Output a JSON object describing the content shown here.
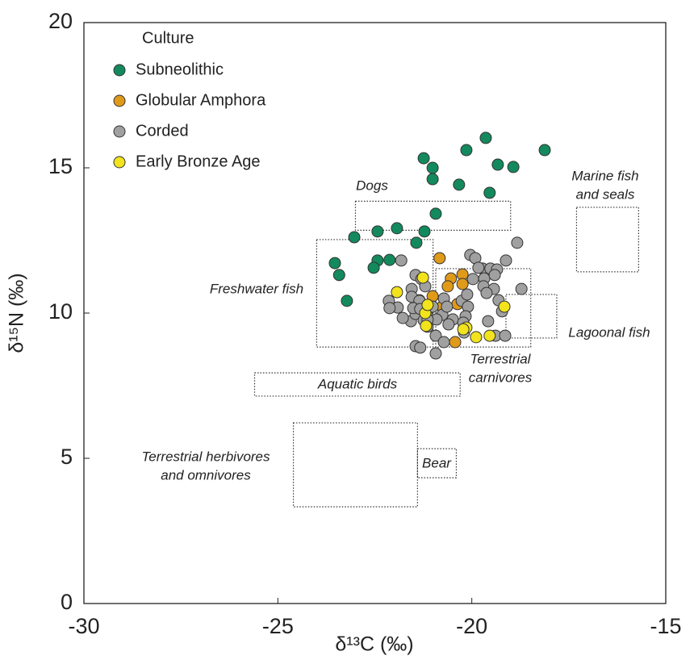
{
  "chart_data": {
    "type": "scatter",
    "xlabel": "δ¹³C (‰)",
    "ylabel": "δ¹⁵N (‰)",
    "xlim": [
      -30,
      -15
    ],
    "ylim": [
      0,
      20
    ],
    "xticks": [
      -30,
      -25,
      -20,
      -15
    ],
    "yticks": [
      0,
      5,
      10,
      15,
      20
    ],
    "legend_title": "Culture",
    "legend_position": "upper left",
    "series": [
      {
        "name": "Subneolithic",
        "color": "#138a5e",
        "x": [
          -21.24,
          -21.01,
          -21.01,
          -20.14,
          -19.64,
          -19.33,
          -18.93,
          -18.12,
          -20.33,
          -19.54,
          -20.93,
          -21.22,
          -21.93,
          -22.43,
          -23.03,
          -21.43,
          -23.53,
          -23.42,
          -22.43,
          -22.53,
          -22.12,
          -23.22
        ],
        "values": [
          15.33,
          15.0,
          14.61,
          15.61,
          16.03,
          15.11,
          15.03,
          15.61,
          14.42,
          14.14,
          13.42,
          12.81,
          12.92,
          12.81,
          12.61,
          12.42,
          11.72,
          11.31,
          11.81,
          11.56,
          11.83,
          10.42
        ]
      },
      {
        "name": "Globular Amphora",
        "color": "#e09a1a",
        "x": [
          -20.83,
          -20.54,
          -20.62,
          -20.24,
          -20.24,
          -21.01,
          -21.35,
          -21.2,
          -20.37,
          -20.43,
          -20.76
        ],
        "values": [
          11.89,
          11.19,
          10.92,
          11.33,
          11.0,
          10.58,
          10.44,
          10.17,
          10.31,
          9.0,
          10.22
        ]
      },
      {
        "name": "Corded",
        "color": "#a0a0a0",
        "x": [
          -21.82,
          -21.45,
          -21.3,
          -21.55,
          -21.2,
          -21.55,
          -21.35,
          -22.14,
          -21.91,
          -22.12,
          -21.57,
          -21.45,
          -21.16,
          -21.24,
          -21.14,
          -21.78,
          -21.51,
          -21.33,
          -21.01,
          -20.72,
          -20.76,
          -20.91,
          -20.49,
          -20.26,
          -20.12,
          -20.64,
          -20.6,
          -20.1,
          -20.16,
          -19.97,
          -20.04,
          -19.91,
          -19.72,
          -19.68,
          -19.83,
          -19.52,
          -19.35,
          -19.41,
          -19.7,
          -19.43,
          -19.62,
          -19.12,
          -18.83,
          -18.72,
          -19.31,
          -19.22,
          -19.58,
          -19.39,
          -19.14,
          -20.2,
          -20.22,
          -20.93,
          -20.72,
          -20.93,
          -21.45,
          -21.33,
          -21.14
        ],
        "values": [
          11.81,
          11.31,
          11.17,
          10.83,
          10.92,
          10.56,
          10.42,
          10.42,
          10.19,
          10.17,
          9.72,
          9.97,
          9.94,
          9.75,
          9.53,
          9.83,
          10.17,
          10.14,
          10.22,
          10.5,
          9.94,
          9.78,
          9.78,
          10.42,
          10.64,
          10.22,
          9.61,
          10.22,
          9.89,
          11.17,
          12.0,
          11.89,
          11.53,
          11.19,
          11.56,
          11.53,
          11.5,
          11.31,
          10.92,
          10.83,
          10.69,
          11.81,
          12.42,
          10.83,
          10.44,
          10.06,
          9.72,
          9.22,
          9.22,
          9.33,
          9.67,
          9.22,
          9.0,
          8.61,
          8.86,
          8.81,
          9.78
        ]
      },
      {
        "name": "Early Bronze Age",
        "color": "#f2e31c",
        "x": [
          -21.93,
          -21.26,
          -21.2,
          -21.18,
          -20.14,
          -19.89,
          -19.16,
          -19.54,
          -21.14,
          -20.22
        ],
        "values": [
          10.72,
          11.22,
          10.0,
          9.56,
          9.5,
          9.17,
          10.22,
          9.22,
          10.28,
          9.44
        ]
      }
    ],
    "regions": [
      {
        "label": [
          "Dogs"
        ],
        "x": [
          -23.0,
          -19.0
        ],
        "y": [
          12.85,
          13.85
        ]
      },
      {
        "label": [
          "Marine fish",
          "and seals"
        ],
        "x": [
          -17.3,
          -15.7
        ],
        "y": [
          11.42,
          13.64
        ]
      },
      {
        "label": [
          "Freshwater fish"
        ],
        "x": [
          -24.0,
          -21.0
        ],
        "y": [
          8.83,
          12.53
        ]
      },
      {
        "label": [
          "Terrestrial",
          "carnivores"
        ],
        "x": [
          -20.93,
          -18.48
        ],
        "y": [
          8.83,
          11.53
        ]
      },
      {
        "label": [
          "Lagoonal fish"
        ],
        "x": [
          -19.12,
          -17.81
        ],
        "y": [
          9.14,
          10.64
        ]
      },
      {
        "label": [
          "Aquatic birds"
        ],
        "x": [
          -25.6,
          -20.3
        ],
        "y": [
          7.14,
          7.94
        ]
      },
      {
        "label": [
          "Terrestrial herbivores",
          "and omnivores"
        ],
        "x": [
          -24.6,
          -21.4
        ],
        "y": [
          3.33,
          6.22
        ]
      },
      {
        "label": [
          "Bear"
        ],
        "x": [
          -21.4,
          -20.4
        ],
        "y": [
          4.33,
          5.33
        ]
      }
    ]
  }
}
